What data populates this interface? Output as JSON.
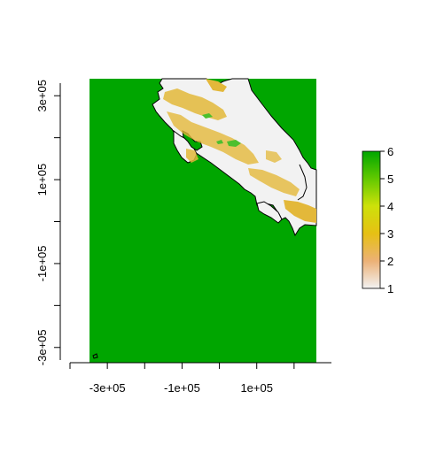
{
  "chart_data": {
    "type": "heatmap",
    "title": "",
    "xlabel": "",
    "ylabel": "",
    "xlim": [
      -400000,
      300000
    ],
    "ylim": [
      -330000,
      330000
    ],
    "x_ticks": [
      -400000,
      -300000,
      -200000,
      -100000,
      0,
      100000,
      200000
    ],
    "x_tick_labels": [
      "-3e+05",
      "-1e+05",
      "1e+05"
    ],
    "x_tick_label_values": [
      -300000,
      -100000,
      100000
    ],
    "y_ticks": [
      -300000,
      -200000,
      -100000,
      0,
      100000,
      200000,
      300000
    ],
    "y_tick_labels": [
      "-3e+05",
      "-1e+05",
      "1e+05",
      "3e+05"
    ],
    "y_tick_label_values": [
      -300000,
      -100000,
      100000,
      300000
    ],
    "raster_extent": {
      "xmin": -350000,
      "xmax": 175000,
      "ymin": -330000,
      "ymax": 310000
    },
    "legend": {
      "min": 1,
      "max": 6,
      "labels": [
        "1",
        "2",
        "3",
        "4",
        "5",
        "6"
      ],
      "placement": "right",
      "colors": [
        "#f2f2f2",
        "#ecb176",
        "#e6c014",
        "#cde10a",
        "#62c900",
        "#00a600"
      ]
    },
    "classes": [
      {
        "value": 1,
        "color": "#f2f2f2"
      },
      {
        "value": 3,
        "color": "#e3b83a"
      },
      {
        "value": 5,
        "color": "#4cbf2e"
      },
      {
        "value": 6,
        "color": "#00a600"
      }
    ]
  }
}
